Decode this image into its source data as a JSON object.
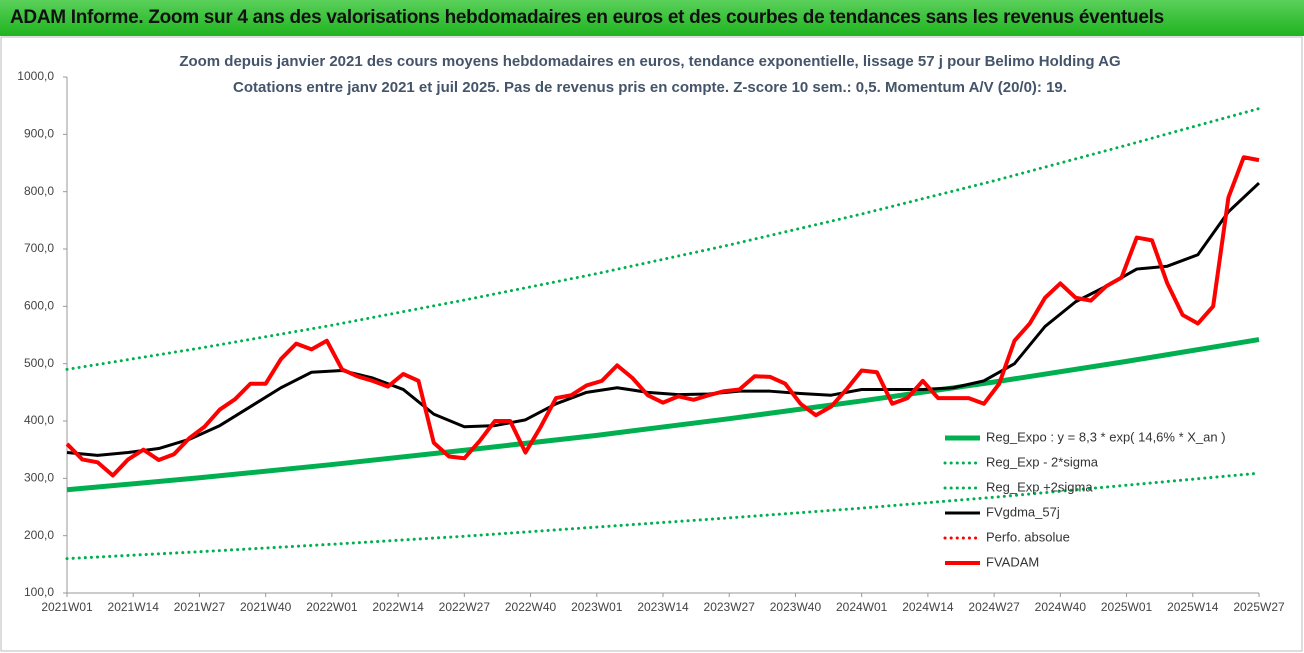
{
  "header": {
    "title": "ADAM Informe. Zoom sur 4 ans des valorisations hebdomadaires en euros et des courbes de tendances sans les revenus éventuels"
  },
  "chart_data": {
    "type": "line",
    "title": "Zoom depuis janvier 2021 des cours moyens hebdomadaires en euros, tendance exponentielle, lissage 57 j pour Belimo Holding AG",
    "subtitle": "Cotations entre janv 2021 et juil 2025. Pas de revenus pris en compte. Z-score 10 sem.: 0,5. Momentum A/V (20/0): 19.",
    "xlim": [
      0,
      234
    ],
    "xticks": [
      {
        "value": 0,
        "label": "2021W01"
      },
      {
        "value": 13,
        "label": "2021W14"
      },
      {
        "value": 26,
        "label": "2021W27"
      },
      {
        "value": 39,
        "label": "2021W40"
      },
      {
        "value": 52,
        "label": "2022W01"
      },
      {
        "value": 65,
        "label": "2022W14"
      },
      {
        "value": 78,
        "label": "2022W27"
      },
      {
        "value": 91,
        "label": "2022W40"
      },
      {
        "value": 104,
        "label": "2023W01"
      },
      {
        "value": 117,
        "label": "2023W14"
      },
      {
        "value": 130,
        "label": "2023W27"
      },
      {
        "value": 143,
        "label": "2023W40"
      },
      {
        "value": 156,
        "label": "2024W01"
      },
      {
        "value": 169,
        "label": "2024W14"
      },
      {
        "value": 182,
        "label": "2024W27"
      },
      {
        "value": 195,
        "label": "2024W40"
      },
      {
        "value": 208,
        "label": "2025W01"
      },
      {
        "value": 221,
        "label": "2025W14"
      },
      {
        "value": 234,
        "label": "2025W27"
      }
    ],
    "ylim": [
      100,
      1000
    ],
    "yticks": [
      {
        "value": 100,
        "label": "100,0"
      },
      {
        "value": 200,
        "label": "200,0"
      },
      {
        "value": 300,
        "label": "300,0"
      },
      {
        "value": 400,
        "label": "400,0"
      },
      {
        "value": 500,
        "label": "500,0"
      },
      {
        "value": 600,
        "label": "600,0"
      },
      {
        "value": 700,
        "label": "700,0"
      },
      {
        "value": 800,
        "label": "800,0"
      },
      {
        "value": 900,
        "label": "900,0"
      },
      {
        "value": 1000,
        "label": "1000,0"
      }
    ],
    "grid": false,
    "series": [
      {
        "name": "Reg_Expo : y = 8,3 * exp( 14,6% *  X_an )",
        "color": "#00b050",
        "style": "solid",
        "width": 5,
        "x": [
          0,
          26,
          52,
          78,
          104,
          130,
          156,
          182,
          208,
          234
        ],
        "values": [
          280,
          301,
          324,
          349,
          375,
          404,
          435,
          468,
          504,
          542
        ]
      },
      {
        "name": "Reg_Exp - 2*sigma",
        "color": "#00b050",
        "style": "dotted",
        "width": 3,
        "x": [
          0,
          26,
          52,
          78,
          104,
          130,
          156,
          182,
          208,
          234
        ],
        "values": [
          160,
          172,
          185,
          199,
          215,
          231,
          248,
          267,
          288,
          309
        ]
      },
      {
        "name": "Reg_Exp +2sigma",
        "color": "#00b050",
        "style": "dotted",
        "width": 3,
        "x": [
          0,
          26,
          52,
          78,
          104,
          130,
          156,
          182,
          208,
          234
        ],
        "values": [
          490,
          527,
          567,
          611,
          657,
          707,
          761,
          819,
          881,
          945
        ]
      },
      {
        "name": "FVgdma_57j",
        "color": "#000000",
        "style": "solid",
        "width": 3,
        "x": [
          0,
          6,
          12,
          18,
          24,
          30,
          36,
          42,
          48,
          54,
          60,
          66,
          72,
          78,
          84,
          90,
          96,
          102,
          108,
          114,
          120,
          126,
          132,
          138,
          144,
          150,
          156,
          162,
          168,
          174,
          180,
          186,
          192,
          198,
          204,
          210,
          216,
          222,
          228,
          234
        ],
        "values": [
          345,
          340,
          345,
          352,
          368,
          392,
          425,
          458,
          485,
          488,
          475,
          455,
          412,
          390,
          392,
          402,
          430,
          450,
          458,
          450,
          446,
          447,
          452,
          452,
          448,
          445,
          455,
          455,
          455,
          458,
          470,
          500,
          565,
          608,
          635,
          665,
          670,
          690,
          765,
          815
        ]
      },
      {
        "name": "Perfo. absolue",
        "color": "#ff0000",
        "style": "dotted",
        "width": 3,
        "x": [],
        "values": []
      },
      {
        "name": "FVADAM",
        "color": "#ff0000",
        "style": "solid",
        "width": 4,
        "x": [
          0,
          3,
          6,
          9,
          12,
          15,
          18,
          21,
          24,
          27,
          30,
          33,
          36,
          39,
          42,
          45,
          48,
          51,
          54,
          57,
          60,
          63,
          66,
          69,
          72,
          75,
          78,
          81,
          84,
          87,
          90,
          93,
          96,
          99,
          102,
          105,
          108,
          111,
          114,
          117,
          120,
          123,
          126,
          129,
          132,
          135,
          138,
          141,
          144,
          147,
          150,
          153,
          156,
          159,
          162,
          165,
          168,
          171,
          174,
          177,
          180,
          183,
          186,
          189,
          192,
          195,
          198,
          201,
          204,
          207,
          210,
          213,
          216,
          219,
          222,
          225,
          228,
          231,
          234
        ],
        "values": [
          360,
          333,
          328,
          305,
          333,
          350,
          332,
          342,
          370,
          390,
          420,
          438,
          465,
          465,
          508,
          535,
          525,
          540,
          490,
          478,
          470,
          460,
          482,
          470,
          362,
          338,
          335,
          365,
          400,
          400,
          345,
          390,
          440,
          445,
          462,
          470,
          497,
          475,
          445,
          432,
          443,
          437,
          445,
          452,
          455,
          478,
          477,
          465,
          430,
          410,
          425,
          455,
          488,
          485,
          430,
          440,
          470,
          440,
          440,
          440,
          430,
          465,
          540,
          570,
          615,
          640,
          615,
          610,
          635,
          650,
          720,
          715,
          640,
          585,
          570,
          600,
          790,
          860,
          855
        ]
      }
    ]
  }
}
